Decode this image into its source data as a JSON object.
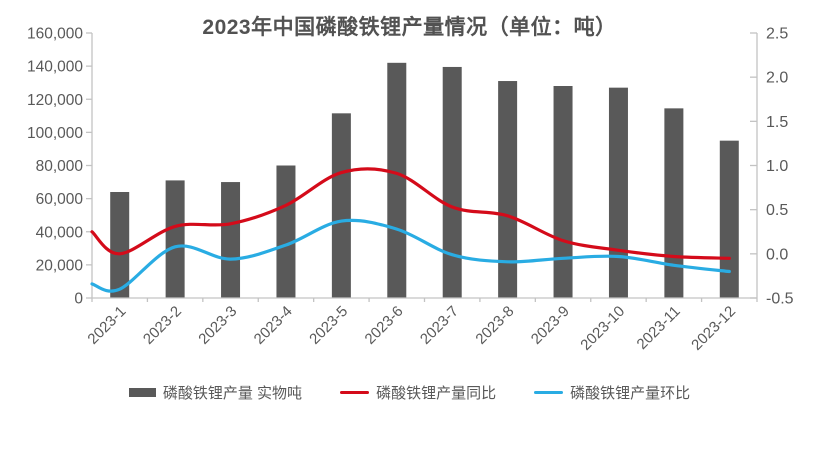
{
  "chart_data": {
    "type": "combo",
    "title": "2023年中国磷酸铁锂产量情况（单位：吨）",
    "categories": [
      "2023-1",
      "2023-2",
      "2023-3",
      "2023-4",
      "2023-5",
      "2023-6",
      "2023-7",
      "2023-8",
      "2023-9",
      "2023-10",
      "2023-11",
      "2023-12"
    ],
    "series": [
      {
        "name": "磷酸铁锂产量 实物吨",
        "type": "bar",
        "axis": "left",
        "values": [
          64000,
          71000,
          70000,
          80000,
          111500,
          142000,
          139500,
          131000,
          128000,
          127000,
          114500,
          95000
        ]
      },
      {
        "name": "磷酸铁锂产量同比",
        "type": "line",
        "axis": "right",
        "values": [
          0.0,
          0.31,
          0.34,
          0.55,
          0.92,
          0.91,
          0.53,
          0.43,
          0.15,
          0.04,
          -0.03,
          -0.05
        ],
        "left_edge_value": 0.25
      },
      {
        "name": "磷酸铁锂产量环比",
        "type": "line",
        "axis": "right",
        "values": [
          -0.4,
          0.08,
          -0.06,
          0.1,
          0.37,
          0.28,
          -0.01,
          -0.09,
          -0.05,
          -0.03,
          -0.13,
          -0.2
        ],
        "left_edge_value": -0.34
      }
    ],
    "left_axis": {
      "min": 0,
      "max": 160000,
      "step": 20000,
      "tick_labels": [
        "0",
        "20,000",
        "40,000",
        "60,000",
        "80,000",
        "100,000",
        "120,000",
        "140,000",
        "160,000"
      ]
    },
    "right_axis": {
      "min": -0.5,
      "max": 2.5,
      "step": 0.5,
      "tick_labels": [
        "-0.5",
        "0.0",
        "0.5",
        "1.0",
        "1.5",
        "2.0",
        "2.5"
      ]
    },
    "grid": false,
    "legend_position": "bottom"
  },
  "colors": {
    "bar": "#595959",
    "yoy_line": "#d40b1a",
    "mom_line": "#29ace3",
    "axis": "#c3c3c3",
    "tick_label": "#595959",
    "title": "#525252",
    "background": "#ffffff"
  }
}
